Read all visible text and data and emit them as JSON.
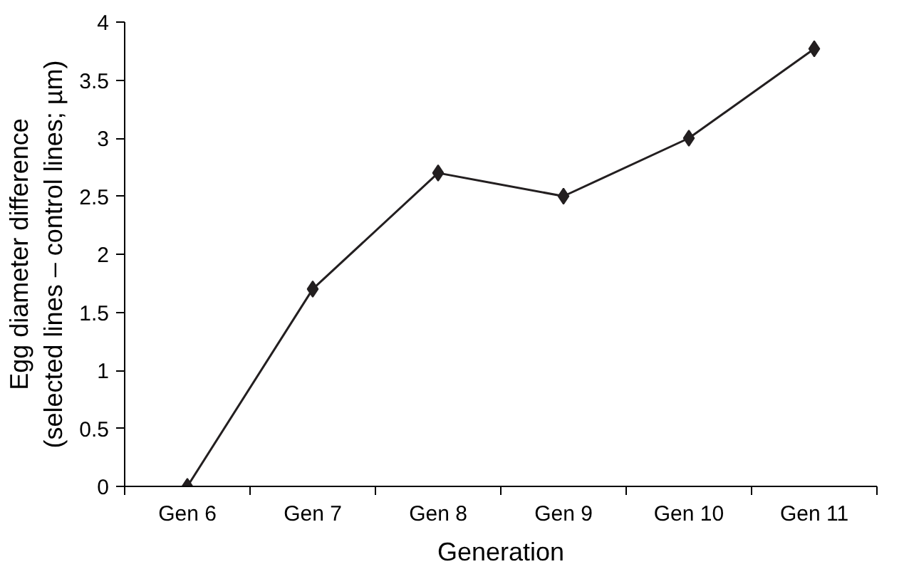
{
  "chart_data": {
    "type": "line",
    "xlabel": "Generation",
    "ylabel": "Egg diameter difference\n(selected lines – control lines; µm)",
    "categories": [
      "Gen 6",
      "Gen 7",
      "Gen 8",
      "Gen 9",
      "Gen 10",
      "Gen 11"
    ],
    "series": [
      {
        "color": "#231f20",
        "values": [
          0,
          1.7,
          2.7,
          2.5,
          3.0,
          3.77
        ]
      }
    ],
    "ylim": [
      0,
      4
    ],
    "yticks": [
      0,
      0.5,
      1,
      1.5,
      2,
      2.5,
      3,
      3.5,
      4
    ],
    "marker": "diamond",
    "line_style": "solid",
    "grid": false
  }
}
